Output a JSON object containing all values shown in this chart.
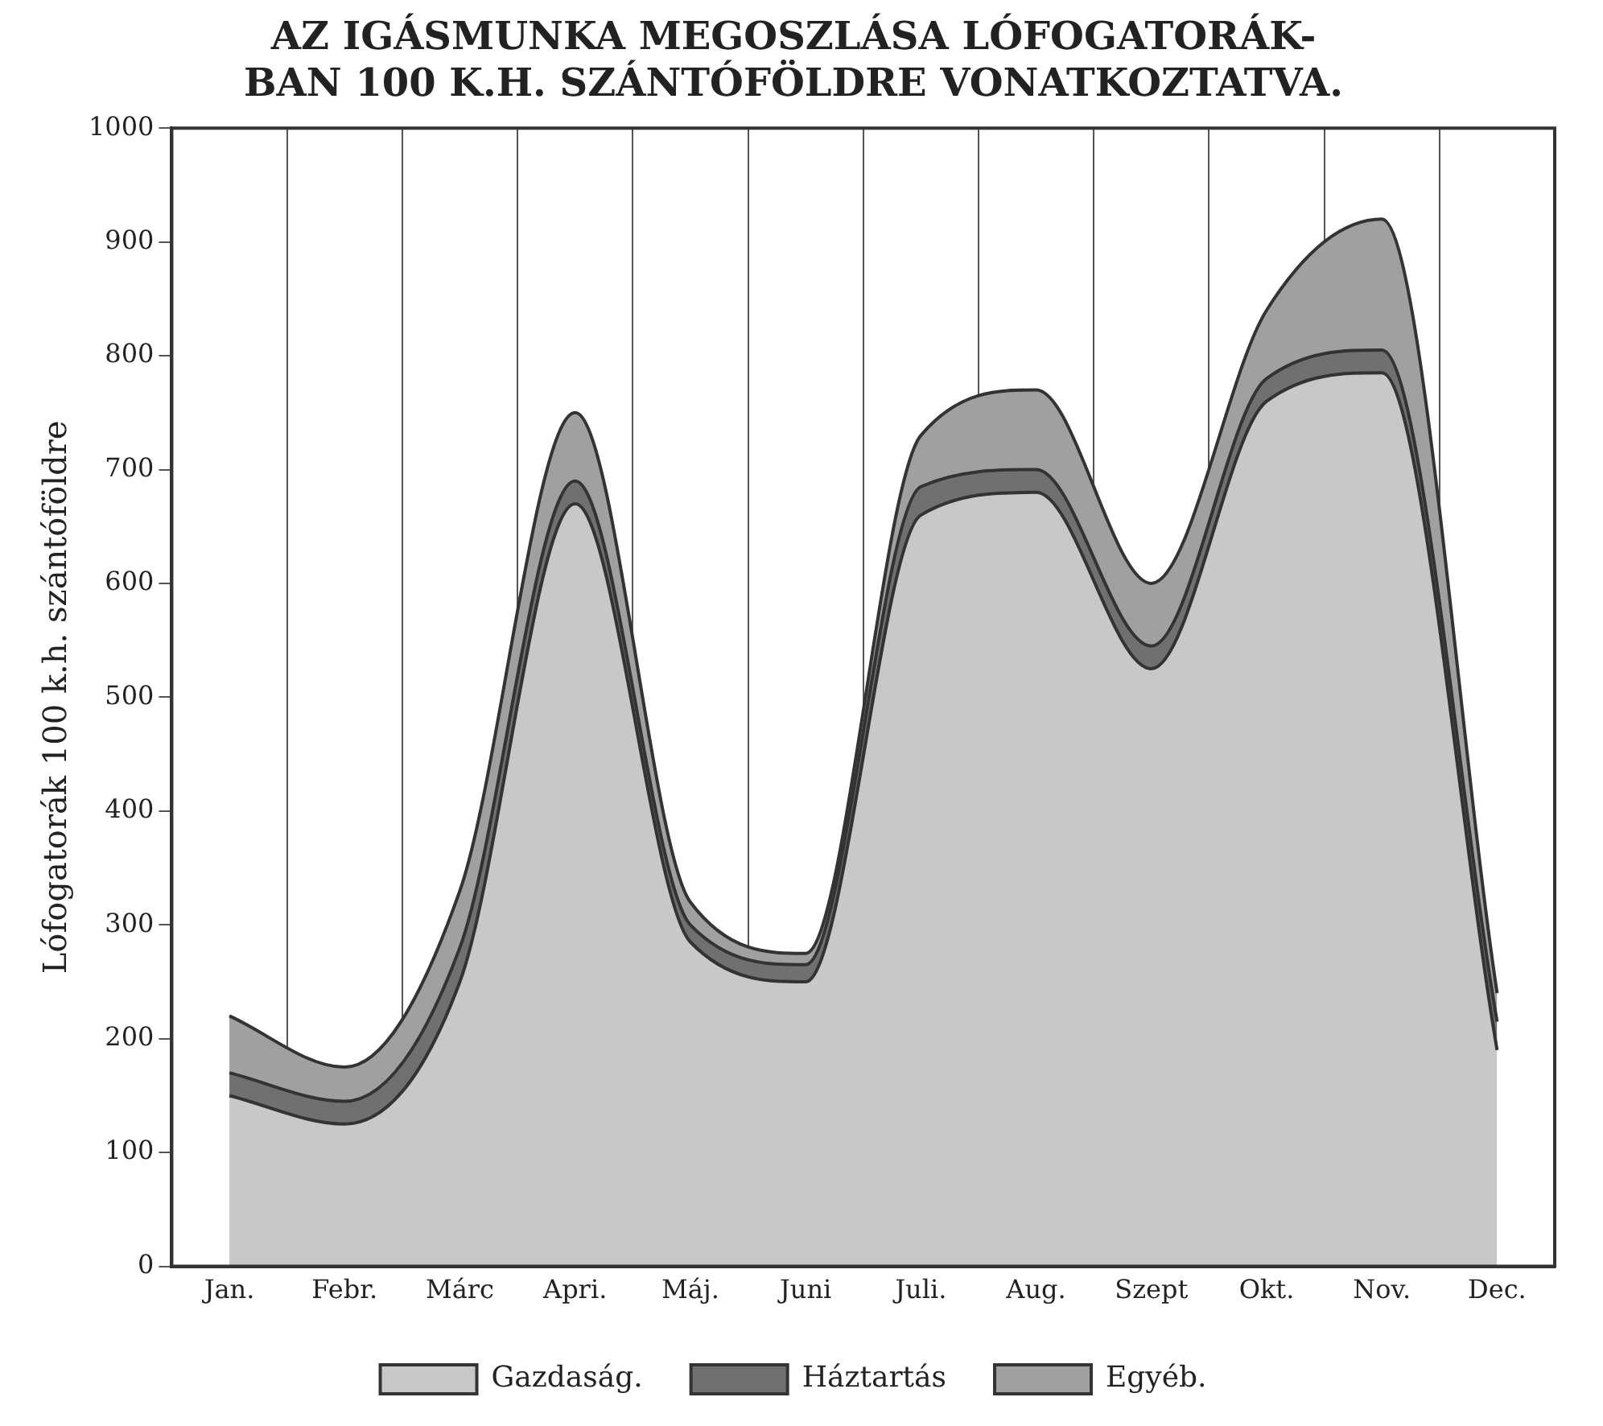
{
  "chart_data": {
    "type": "area",
    "title": "AZ IGÁSMUNKA MEGOSZLÁSA LÓFOGATORÁK-\nBAN 100 K.H. SZÁNTÓFÖLDRE VONATKOZTATVA.",
    "ylabel": "Lófogatorák 100 k.h. szántóföldre",
    "categories": [
      "Jan.",
      "Febr.",
      "Márc",
      "Apri.",
      "Máj.",
      "Juni",
      "Juli.",
      "Aug.",
      "Szept",
      "Okt.",
      "Nov.",
      "Dec."
    ],
    "series": [
      {
        "name": "Gazdaság.",
        "color": "#c8c8c8",
        "values": [
          150,
          125,
          250,
          670,
          285,
          250,
          660,
          680,
          525,
          760,
          785,
          190
        ]
      },
      {
        "name": "Háztartás",
        "color": "#707070",
        "values": [
          20,
          20,
          30,
          20,
          15,
          15,
          25,
          20,
          20,
          20,
          20,
          25
        ]
      },
      {
        "name": "Egyéb.",
        "color": "#a0a0a0",
        "values": [
          50,
          30,
          50,
          60,
          20,
          10,
          45,
          70,
          55,
          60,
          115,
          25
        ]
      }
    ],
    "stacked": true,
    "ylim": [
      0,
      1000
    ],
    "yticks": [
      0,
      100,
      200,
      300,
      400,
      500,
      600,
      700,
      800,
      900,
      1000
    ],
    "grid": "x",
    "legend": "bottom"
  }
}
